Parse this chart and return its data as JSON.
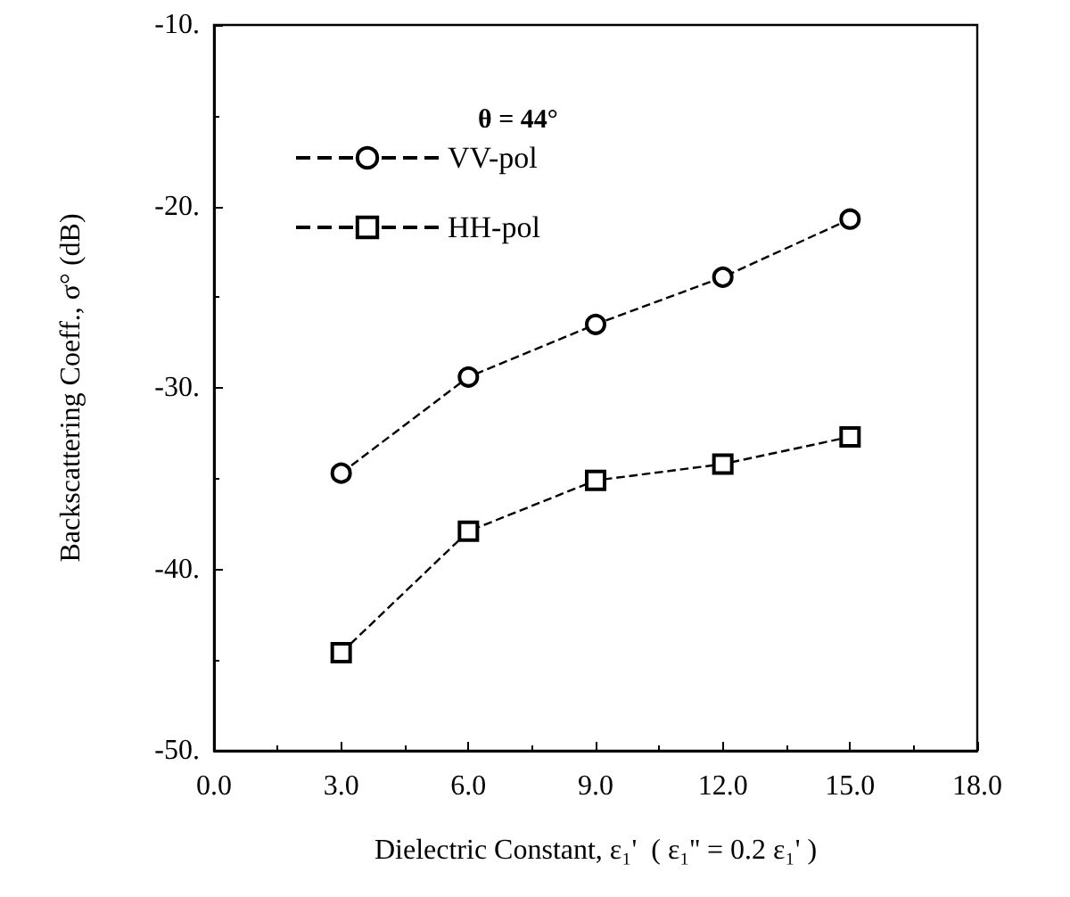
{
  "chart_data": {
    "type": "line",
    "xlabel": "Dielectric Constant, ε₁'  ( ε₁'' = 0.2 ε₁' )",
    "ylabel": "Backscattering Coeff., σ° (dB)",
    "annotations": [
      "θ = 44°"
    ],
    "x": [
      3,
      6,
      9,
      12,
      15
    ],
    "series": [
      {
        "name": "VV-pol",
        "color": "#000000",
        "marker": "circle",
        "values": [
          -34.7,
          -29.4,
          -26.5,
          -23.9,
          -20.7
        ]
      },
      {
        "name": "HH-pol",
        "color": "#000000",
        "marker": "square",
        "values": [
          -44.6,
          -37.9,
          -35.1,
          -34.2,
          -32.7
        ]
      }
    ],
    "xlim": [
      0,
      18
    ],
    "xticks": [
      {
        "value": 0,
        "label": "0.0"
      },
      {
        "value": 3,
        "label": "3.0"
      },
      {
        "value": 6,
        "label": "6.0"
      },
      {
        "value": 9,
        "label": "9.0"
      },
      {
        "value": 12,
        "label": "12.0"
      },
      {
        "value": 15,
        "label": "15.0"
      },
      {
        "value": 18,
        "label": "18.0"
      }
    ],
    "ylim": [
      -50,
      -10
    ],
    "yticks": [
      {
        "value": -50,
        "label": "-50."
      },
      {
        "value": -40,
        "label": "-40."
      },
      {
        "value": -30,
        "label": "-30."
      },
      {
        "value": -20,
        "label": "-20."
      },
      {
        "value": -10,
        "label": "-10."
      }
    ],
    "grid": false,
    "legend": "top left",
    "line_style": "dashed"
  }
}
